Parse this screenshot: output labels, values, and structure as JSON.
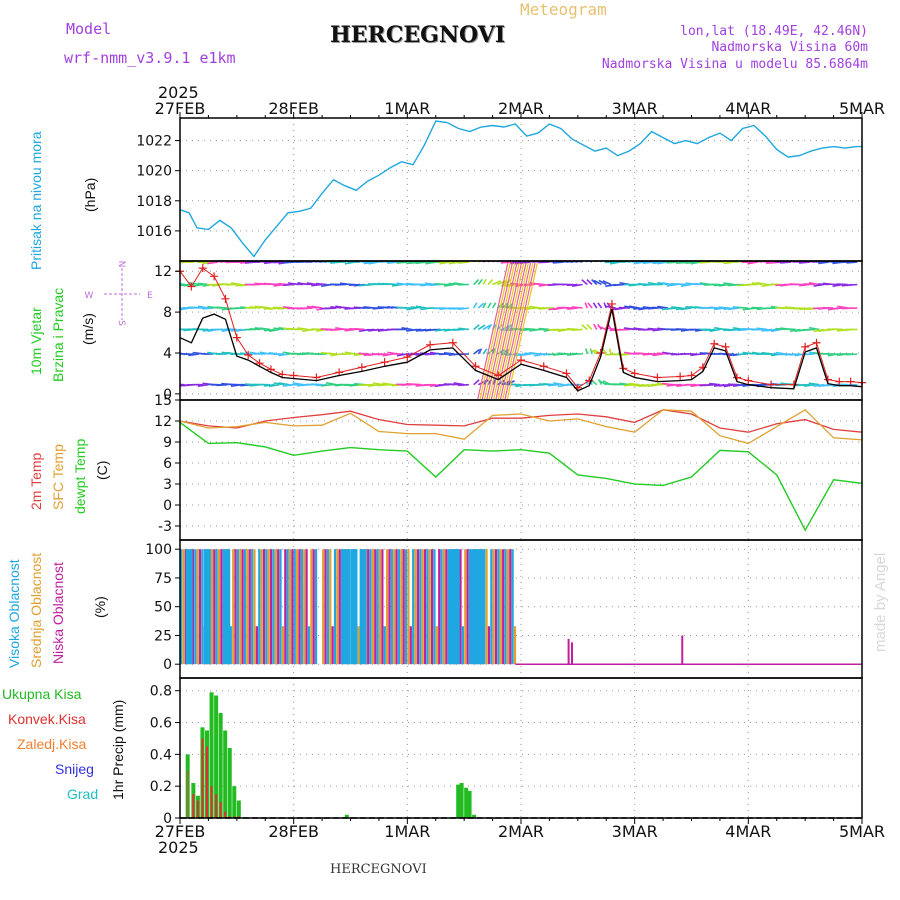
{
  "header": {
    "model_label": "Model",
    "model_name": "wrf-nmm_v3.9.1 e1km",
    "title": "HERCEGNOVI",
    "meteogram_label": "Meteogram",
    "lonlat": "lon,lat (18.49E, 42.46N)",
    "elevation": "Nadmorska Visina 60m",
    "model_elevation": "Nadmorska Visina u modelu 85.6864m",
    "year_top": "2025",
    "year_bottom": "2025",
    "footer_title": "HERCEGNOVI",
    "watermark": "made by Angel"
  },
  "colors": {
    "pressure": "#1ea7e0",
    "temp2m": "#e04040",
    "sfc_temp": "#e0a030",
    "dewpoint": "#22cc22",
    "wind_speed": "#000000",
    "wind_gust": "#e02020",
    "cloud_high": "#1ea7e0",
    "cloud_mid": "#e0a030",
    "cloud_low": "#c020a0",
    "precip_total": "#22bb22",
    "precip_conv": "#e03030",
    "precip_ice": "#f08030",
    "snow": "#3030e0",
    "hail": "#20c0c0",
    "label_purple": "#a040e0"
  },
  "time_axis": {
    "ticks": [
      "27FEB",
      "28FEB",
      "1MAR",
      "2MAR",
      "3MAR",
      "4MAR",
      "5MAR"
    ],
    "days": 6
  },
  "panels": {
    "pressure": {
      "ylabel": "Pritisak na nivou mora",
      "unit": "(hPa)",
      "ticks": [
        "1016",
        "1018",
        "1020",
        "1022"
      ]
    },
    "wind": {
      "ylabel_line1": "10m Vjetar",
      "ylabel_line2": "Brzina i Pravac",
      "unit": "(m/s)",
      "ticks": [
        "0",
        "4",
        "8",
        "12"
      ],
      "compass_n": "N",
      "compass_s": "S",
      "compass_e": "E",
      "compass_w": "W"
    },
    "temperature": {
      "ylabel_line1": "2m Temp",
      "ylabel_line2": "SFC Temp",
      "ylabel_line3": "dewpt Temp",
      "unit": "(C)",
      "ticks": [
        "-3",
        "0",
        "3",
        "6",
        "9",
        "12",
        "15"
      ]
    },
    "cloud": {
      "ylabel_line1": "Visoka Oblacnost",
      "ylabel_line2": "Srednja Oblacnost",
      "ylabel_line3": "Niska Oblacnost",
      "unit": "(%)",
      "ticks": [
        "0",
        "25",
        "50",
        "75",
        "100"
      ]
    },
    "precip": {
      "legend_total": "Ukupna Kisa",
      "legend_conv": "Konvek.Kisa",
      "legend_ice": "Zaledj.Kisa",
      "legend_snow": "Snijeg",
      "legend_hail": "Grad",
      "unit": "1hr Precip (mm)",
      "ticks": [
        "0",
        "0.2",
        "0.4",
        "0.6",
        "0.8"
      ]
    }
  },
  "chart_data": [
    {
      "type": "line",
      "name": "pressure",
      "ylim": [
        1014,
        1023.5
      ],
      "x_days": [
        0,
        0.08,
        0.15,
        0.25,
        0.35,
        0.45,
        0.55,
        0.65,
        0.75,
        0.85,
        0.95,
        1.05,
        1.15,
        1.25,
        1.35,
        1.45,
        1.55,
        1.65,
        1.75,
        1.85,
        1.95,
        2.05,
        2.15,
        2.25,
        2.35,
        2.45,
        2.55,
        2.65,
        2.75,
        2.85,
        2.95,
        3.05,
        3.15,
        3.25,
        3.35,
        3.45,
        3.55,
        3.65,
        3.75,
        3.85,
        3.95,
        4.05,
        4.15,
        4.25,
        4.35,
        4.45,
        4.55,
        4.65,
        4.75,
        4.85,
        4.95,
        5.05,
        5.15,
        5.25,
        5.35,
        5.45,
        5.55,
        5.65,
        5.75,
        5.85,
        5.95,
        6.0
      ],
      "values": [
        1017.4,
        1017.2,
        1016.2,
        1016.1,
        1016.7,
        1016.2,
        1015.2,
        1014.3,
        1015.4,
        1016.3,
        1017.2,
        1017.3,
        1017.5,
        1018.5,
        1019.4,
        1019.0,
        1018.7,
        1019.3,
        1019.7,
        1020.2,
        1020.6,
        1020.4,
        1021.7,
        1023.3,
        1023.2,
        1022.8,
        1022.6,
        1022.9,
        1023.0,
        1022.9,
        1023.1,
        1022.3,
        1022.5,
        1023.1,
        1022.8,
        1022.1,
        1021.7,
        1021.3,
        1021.5,
        1021.0,
        1021.3,
        1021.8,
        1022.6,
        1022.2,
        1021.8,
        1022.0,
        1021.8,
        1022.2,
        1022.5,
        1022.0,
        1022.8,
        1023.0,
        1022.3,
        1021.4,
        1020.9,
        1021.0,
        1021.3,
        1021.5,
        1021.6,
        1021.5,
        1021.6,
        1021.6
      ]
    },
    {
      "type": "line",
      "name": "wind",
      "ylim": [
        -0.6,
        13
      ],
      "x_days": [
        0,
        0.1,
        0.2,
        0.3,
        0.4,
        0.5,
        0.6,
        0.7,
        0.8,
        0.9,
        1.0,
        1.2,
        1.4,
        1.6,
        1.8,
        2.0,
        2.2,
        2.4,
        2.6,
        2.8,
        3.0,
        3.2,
        3.4,
        3.5,
        3.6,
        3.7,
        3.8,
        3.9,
        4.0,
        4.2,
        4.4,
        4.5,
        4.6,
        4.7,
        4.8,
        4.9,
        5.0,
        5.2,
        5.4,
        5.5,
        5.6,
        5.7,
        5.8,
        5.9,
        6.0
      ],
      "speed": [
        5.5,
        5.0,
        7.4,
        7.8,
        7.3,
        3.7,
        3.3,
        2.7,
        2.1,
        1.6,
        1.5,
        1.3,
        1.8,
        2.2,
        2.7,
        3.1,
        4.3,
        4.5,
        2.3,
        1.4,
        2.9,
        2.3,
        1.6,
        0.3,
        0.8,
        3.6,
        8.3,
        2.1,
        1.6,
        1.2,
        1.3,
        1.4,
        2.2,
        4.5,
        4.2,
        1.2,
        0.9,
        0.6,
        0.5,
        4.1,
        4.5,
        1.0,
        0.8,
        0.8,
        0.7
      ],
      "gust": [
        12.0,
        10.5,
        12.3,
        11.5,
        9.3,
        5.5,
        3.8,
        3.0,
        2.4,
        1.9,
        1.8,
        1.6,
        2.1,
        2.6,
        3.1,
        3.6,
        4.8,
        5.0,
        2.7,
        1.8,
        3.3,
        2.7,
        2.0,
        0.6,
        1.3,
        4.0,
        8.8,
        2.5,
        2.0,
        1.6,
        1.7,
        1.8,
        2.6,
        4.9,
        4.6,
        1.6,
        1.3,
        0.9,
        0.9,
        4.6,
        5.0,
        1.4,
        1.2,
        1.2,
        1.1
      ]
    },
    {
      "type": "line",
      "name": "temperature",
      "ylim": [
        -5,
        15
      ],
      "x_days": [
        0,
        0.25,
        0.5,
        0.75,
        1.0,
        1.25,
        1.5,
        1.75,
        2.0,
        2.25,
        2.5,
        2.75,
        3.0,
        3.25,
        3.5,
        3.75,
        4.0,
        4.25,
        4.5,
        4.75,
        5.0,
        5.25,
        5.5,
        5.75,
        6.0
      ],
      "temp_2m": [
        12.0,
        11.3,
        11.0,
        12.0,
        12.5,
        12.9,
        13.4,
        12.2,
        11.5,
        11.4,
        11.3,
        12.4,
        12.4,
        12.8,
        13.0,
        12.6,
        11.8,
        13.6,
        13.0,
        11.0,
        10.4,
        11.6,
        12.2,
        10.8,
        10.4
      ],
      "sfc_temp": [
        12.0,
        11.0,
        11.2,
        11.8,
        11.3,
        11.4,
        13.1,
        10.5,
        10.2,
        10.2,
        9.4,
        12.8,
        13.0,
        12.0,
        12.3,
        11.2,
        10.4,
        13.6,
        13.4,
        9.9,
        8.8,
        11.2,
        13.6,
        9.6,
        9.3
      ],
      "dewpoint": [
        11.8,
        8.8,
        8.9,
        8.3,
        7.1,
        7.7,
        8.2,
        7.9,
        7.7,
        4.0,
        7.9,
        7.7,
        7.9,
        7.4,
        4.3,
        3.8,
        3.0,
        2.8,
        4.0,
        7.8,
        7.6,
        4.3,
        -3.6,
        3.6,
        3.1
      ]
    },
    {
      "type": "bar",
      "name": "cloud",
      "ylim": [
        0,
        100
      ],
      "days_per_bar": 0.041667,
      "high_days": [
        0.05,
        0.21,
        0.38,
        1.42,
        1.5,
        1.58,
        2.37,
        2.4,
        2.56,
        2.62
      ],
      "mid_days": [
        0.1,
        0.26,
        0.42,
        1.27,
        1.46,
        1.54,
        1.78,
        1.88,
        1.99,
        2.66,
        2.74,
        2.82,
        2.86
      ],
      "low_days": [
        0.08,
        0.3,
        0.54,
        1.29,
        1.34,
        1.48,
        1.86,
        2.14,
        2.25,
        3.41,
        3.48,
        4.43
      ],
      "low_partial": [
        {
          "day": 3.41,
          "value": 22
        },
        {
          "day": 3.44,
          "value": 19
        },
        {
          "day": 4.41,
          "value": 25
        }
      ]
    },
    {
      "type": "bar",
      "name": "precip",
      "ylim": [
        0,
        0.88
      ],
      "x_days": [
        0.05,
        0.1,
        0.14,
        0.18,
        0.22,
        0.26,
        0.3,
        0.34,
        0.38,
        0.42,
        0.46,
        0.5,
        1.45,
        2.43,
        2.46,
        2.5,
        2.53,
        2.57
      ],
      "total": [
        0.4,
        0.22,
        0.14,
        0.57,
        0.55,
        0.79,
        0.77,
        0.66,
        0.55,
        0.44,
        0.2,
        0.11,
        0.02,
        0.21,
        0.22,
        0.19,
        0.17,
        0.02
      ],
      "convective": [
        0.3,
        0.15,
        0.11,
        0.5,
        0.45,
        0.2,
        0.15,
        0.1,
        0.04,
        0.01,
        0.01,
        0.01,
        0.0,
        0.0,
        0.0,
        0.0,
        0.0,
        0.0
      ],
      "ice": [
        0.0,
        0.0,
        0.0,
        0.0,
        0.0,
        0.0,
        0.0,
        0.0,
        0.0,
        0.0,
        0.0,
        0.0,
        0.0,
        0.0,
        0.0,
        0.0,
        0.0,
        0.0
      ],
      "snow": [
        0.0,
        0.0,
        0.0,
        0.0,
        0.0,
        0.0,
        0.0,
        0.0,
        0.0,
        0.0,
        0.0,
        0.0,
        0.0,
        0.0,
        0.0,
        0.0,
        0.0,
        0.0
      ],
      "hail": [
        0.0,
        0.0,
        0.0,
        0.0,
        0.0,
        0.0,
        0.0,
        0.0,
        0.0,
        0.0,
        0.0,
        0.0,
        0.0,
        0.0,
        0.0,
        0.0,
        0.0,
        0.0
      ]
    }
  ]
}
